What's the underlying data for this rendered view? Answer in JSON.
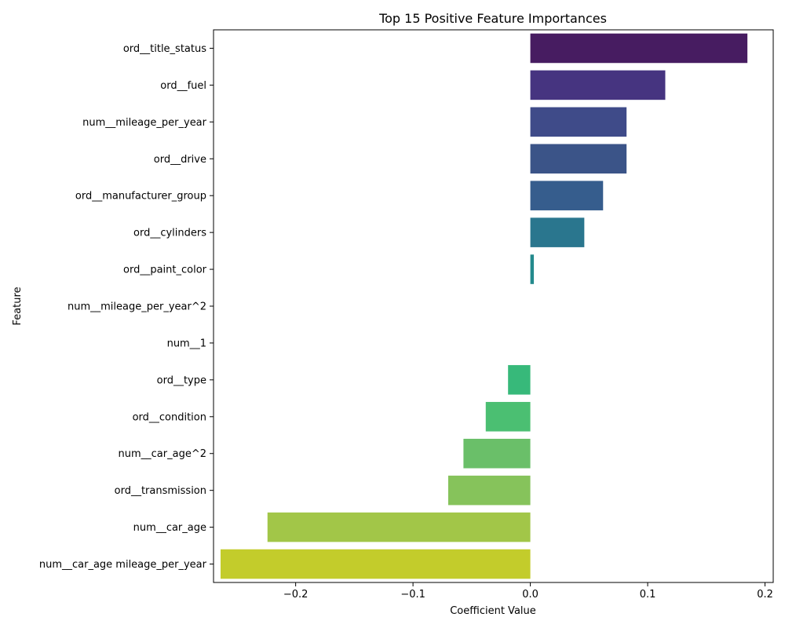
{
  "chart_data": {
    "type": "bar",
    "orientation": "horizontal",
    "title": "Top 15 Positive Feature Importances",
    "xlabel": "Coefficient Value",
    "ylabel": "Feature",
    "xlim": [
      -0.27,
      0.207
    ],
    "xticks": [
      -0.2,
      -0.1,
      0.0,
      0.1,
      0.2
    ],
    "xtick_labels": [
      "−0.2",
      "−0.1",
      "0.0",
      "0.1",
      "0.2"
    ],
    "grid": false,
    "legend": "none",
    "colormap": "viridis",
    "categories": [
      "ord__title_status",
      "ord__fuel",
      "num__mileage_per_year",
      "ord__drive",
      "ord__manufacturer_group",
      "ord__cylinders",
      "ord__paint_color",
      "num__mileage_per_year^2",
      "num__1",
      "ord__type",
      "ord__condition",
      "num__car_age^2",
      "ord__transmission",
      "num__car_age",
      "num__car_age mileage_per_year"
    ],
    "values": [
      0.185,
      0.115,
      0.082,
      0.082,
      0.062,
      0.046,
      0.003,
      0.0,
      0.0,
      -0.019,
      -0.038,
      -0.057,
      -0.07,
      -0.224,
      -0.264
    ],
    "colors": [
      "#471c61",
      "#463480",
      "#3f4b89",
      "#3b5488",
      "#365d8d",
      "#2a768e",
      "#238a8d",
      "#1f9a8a",
      "#27a982",
      "#37b97a",
      "#4bbf72",
      "#6abf69",
      "#86c35b",
      "#a2c648",
      "#c3cc2b"
    ]
  }
}
